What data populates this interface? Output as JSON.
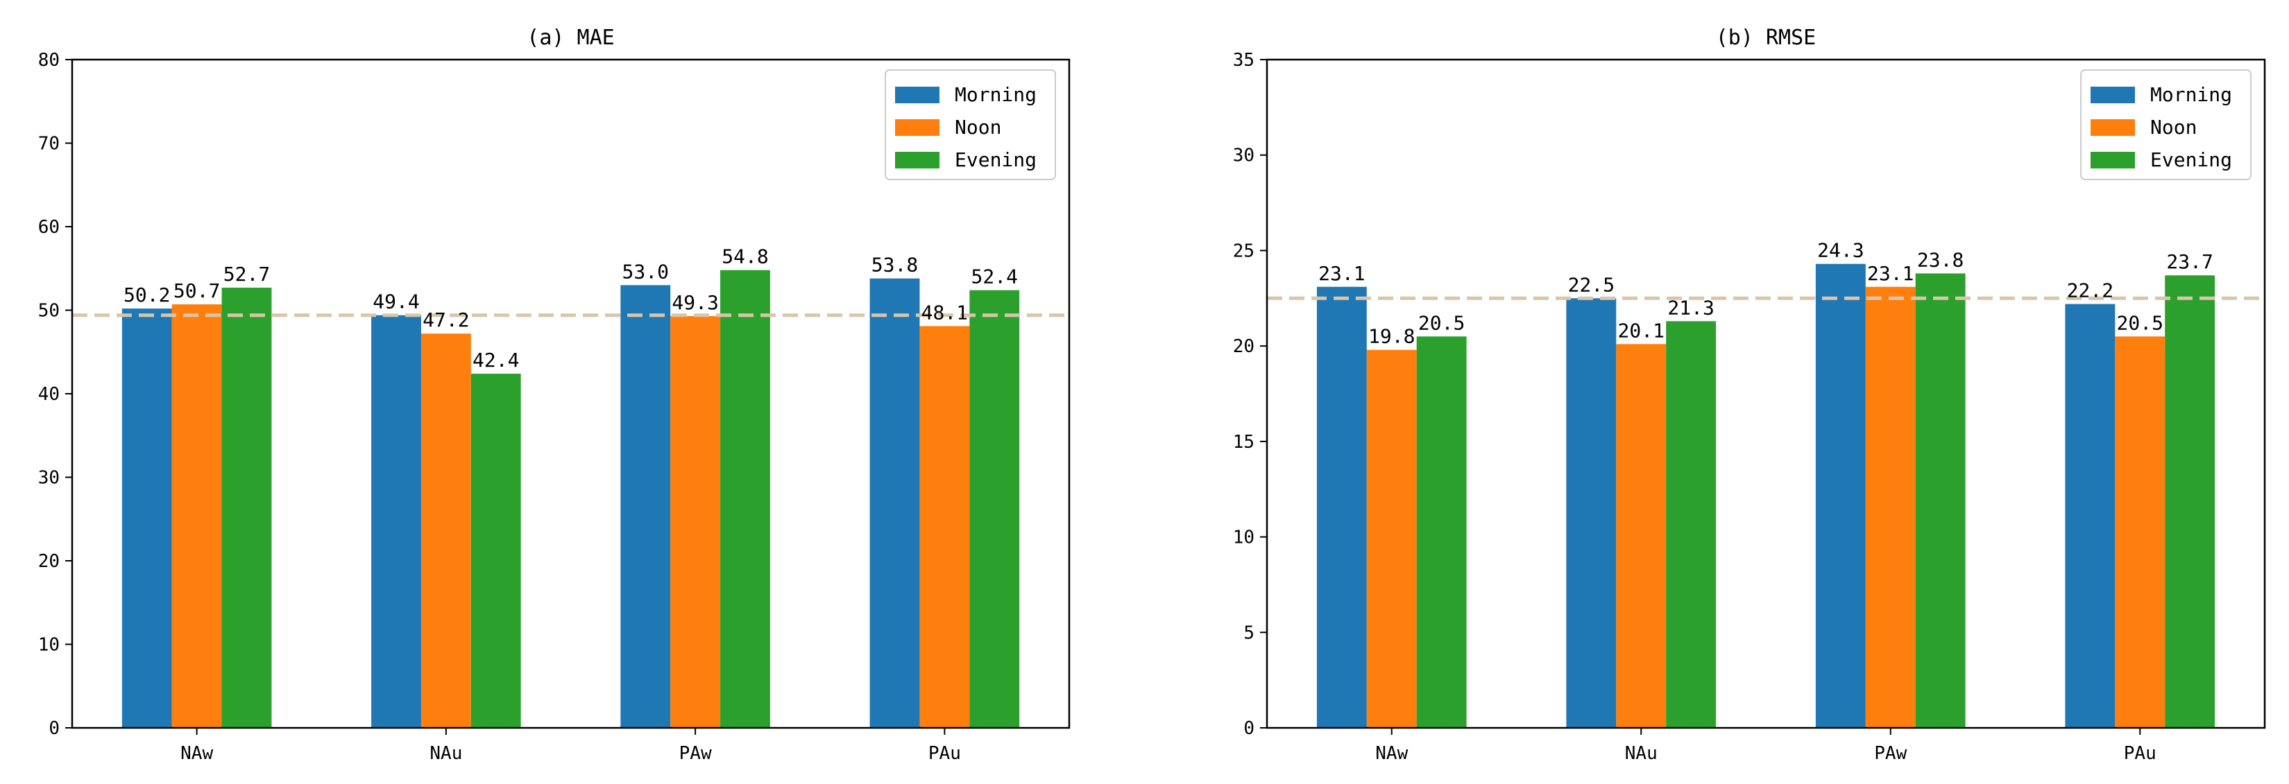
{
  "chart_data": [
    {
      "type": "bar",
      "title": "(a) MAE",
      "xlabel": "",
      "ylabel": "",
      "categories": [
        "NAw",
        "NAu",
        "PAw",
        "PAu"
      ],
      "series": [
        {
          "name": "Morning",
          "color": "#1f77b4",
          "values": [
            50.2,
            49.4,
            53.0,
            53.8
          ]
        },
        {
          "name": "Noon",
          "color": "#ff7f0e",
          "values": [
            50.7,
            47.2,
            49.3,
            48.1
          ]
        },
        {
          "name": "Evening",
          "color": "#2ca02c",
          "values": [
            52.7,
            42.4,
            54.8,
            52.4
          ]
        }
      ],
      "data_labels": [
        [
          "50.2",
          "50.7",
          "52.7"
        ],
        [
          "49.4",
          "47.2",
          "42.4"
        ],
        [
          "53.0",
          "49.3",
          "54.8"
        ],
        [
          "53.8",
          "48.1",
          "52.4"
        ]
      ],
      "ylim": [
        0,
        80
      ],
      "yticks": [
        0,
        10,
        20,
        30,
        40,
        50,
        60,
        70,
        80
      ],
      "ytick_labels": [
        "0",
        "10",
        "20",
        "30",
        "40",
        "50",
        "60",
        "70",
        "80"
      ],
      "reference_line": {
        "value": 49.4,
        "color": "#d9c5aa",
        "style": "dashed"
      },
      "legend_position": "top-right",
      "grid": false
    },
    {
      "type": "bar",
      "title": "(b) RMSE",
      "xlabel": "",
      "ylabel": "",
      "categories": [
        "NAw",
        "NAu",
        "PAw",
        "PAu"
      ],
      "series": [
        {
          "name": "Morning",
          "color": "#1f77b4",
          "values": [
            23.1,
            22.5,
            24.3,
            22.2
          ]
        },
        {
          "name": "Noon",
          "color": "#ff7f0e",
          "values": [
            19.8,
            20.1,
            23.1,
            20.5
          ]
        },
        {
          "name": "Evening",
          "color": "#2ca02c",
          "values": [
            20.5,
            21.3,
            23.8,
            23.7
          ]
        }
      ],
      "data_labels": [
        [
          "23.1",
          "19.8",
          "20.5"
        ],
        [
          "22.5",
          "20.1",
          "21.3"
        ],
        [
          "24.3",
          "23.1",
          "23.8"
        ],
        [
          "22.2",
          "20.5",
          "23.7"
        ]
      ],
      "ylim": [
        0,
        35
      ],
      "yticks": [
        0,
        5,
        10,
        15,
        20,
        25,
        30,
        35
      ],
      "ytick_labels": [
        "0",
        "5",
        "10",
        "15",
        "20",
        "25",
        "30",
        "35"
      ],
      "reference_line": {
        "value": 22.5,
        "color": "#d9c5aa",
        "style": "dashed"
      },
      "legend_position": "top-right",
      "grid": false
    }
  ]
}
